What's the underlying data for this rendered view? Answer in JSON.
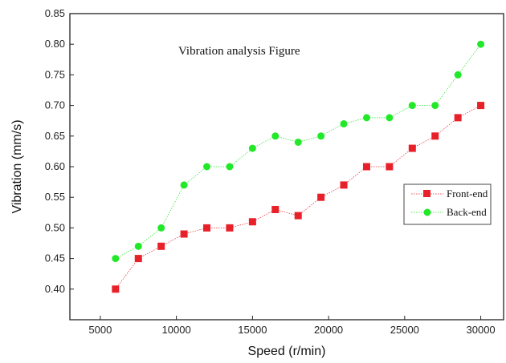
{
  "chart_data": {
    "type": "scatter",
    "title": "Vibration analysis Figure",
    "xlabel": "Speed   (r/min)",
    "ylabel": "Vibration (mm/s)",
    "xlim": [
      3000,
      31500
    ],
    "ylim": [
      0.35,
      0.85
    ],
    "xticks": [
      5000,
      10000,
      15000,
      20000,
      25000,
      30000
    ],
    "yticks": [
      0.4,
      0.45,
      0.5,
      0.55,
      0.6,
      0.65,
      0.7,
      0.75,
      0.8,
      0.85
    ],
    "grid": false,
    "legend_position": "right",
    "x": [
      6000,
      7500,
      9000,
      10500,
      12000,
      13500,
      15000,
      16500,
      18000,
      19500,
      21000,
      22500,
      24000,
      25500,
      27000,
      28500,
      30000
    ],
    "series": [
      {
        "name": "Front-end",
        "color": "#e8202a",
        "marker": "square",
        "values": [
          0.4,
          0.45,
          0.47,
          0.49,
          0.5,
          0.5,
          0.51,
          0.53,
          0.52,
          0.55,
          0.57,
          0.6,
          0.6,
          0.63,
          0.65,
          0.68,
          0.7
        ]
      },
      {
        "name": "Back-end",
        "color": "#22e82a",
        "marker": "circle",
        "values": [
          0.45,
          0.47,
          0.5,
          0.57,
          0.6,
          0.6,
          0.63,
          0.65,
          0.64,
          0.65,
          0.67,
          0.68,
          0.68,
          0.7,
          0.7,
          0.75,
          0.8
        ]
      }
    ]
  }
}
